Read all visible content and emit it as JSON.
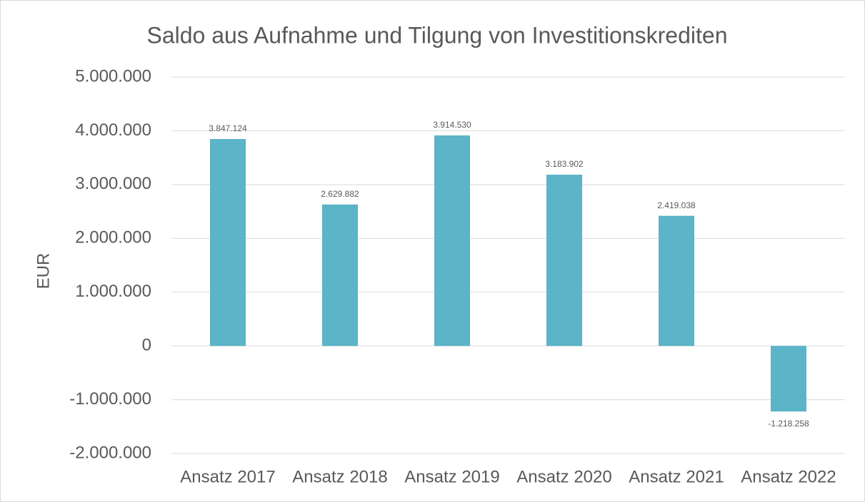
{
  "chart_data": {
    "type": "bar",
    "title": "Saldo aus Aufnahme und Tilgung von Investitionskrediten",
    "ylabel": "EUR",
    "categories": [
      "Ansatz 2017",
      "Ansatz 2018",
      "Ansatz 2019",
      "Ansatz 2020",
      "Ansatz 2021",
      "Ansatz 2022"
    ],
    "values": [
      3847124,
      2629882,
      3914530,
      3183902,
      2419038,
      -1218258
    ],
    "value_labels": [
      "3.847.124",
      "2.629.882",
      "3.914.530",
      "3.183.902",
      "2.419.038",
      "-1.218.258"
    ],
    "color": "#5bb4c8",
    "ylim": [
      -2000000,
      5000000
    ],
    "yticks": [
      {
        "value": -2000000,
        "label": "-2.000.000"
      },
      {
        "value": -1000000,
        "label": "-1.000.000"
      },
      0,
      {
        "value": 1000000,
        "label": "1.000.000"
      },
      {
        "value": 2000000,
        "label": "2.000.000"
      },
      {
        "value": 3000000,
        "label": "3.000.000"
      },
      {
        "value": 4000000,
        "label": "4.000.000"
      },
      {
        "value": 5000000,
        "label": "5.000.000"
      }
    ],
    "grid": true
  }
}
